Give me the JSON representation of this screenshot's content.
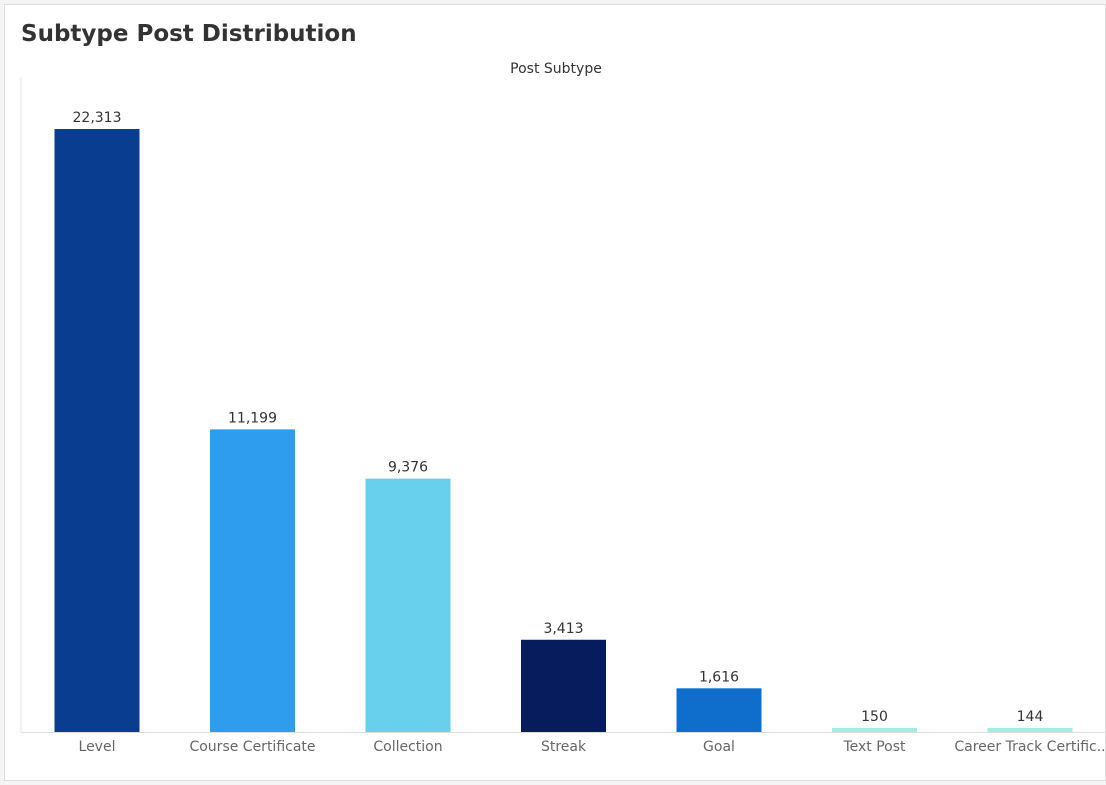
{
  "dashboard": {
    "title": "Subtype Post Distribution"
  },
  "chart_data": {
    "type": "bar",
    "title": "Subtype Post Distribution",
    "column_header": "Post Subtype",
    "categories": [
      "Level",
      "Course Certificate",
      "Collection",
      "Streak",
      "Goal",
      "Text Post",
      "Career Track Certificate"
    ],
    "category_tick_labels": [
      "Level",
      "Course Certificate",
      "Collection",
      "Streak",
      "Goal",
      "Text Post",
      "Career Track Certific.."
    ],
    "values": [
      22313,
      11199,
      9376,
      3413,
      1616,
      150,
      144
    ],
    "data_labels": [
      "22,313",
      "11,199",
      "9,376",
      "3,413",
      "1,616",
      "150",
      "144"
    ],
    "colors": [
      "#083d8f",
      "#2f9ded",
      "#68cfec",
      "#061c5d",
      "#0f6dcb",
      "#a2ece6",
      "#a2ece6"
    ],
    "ylim": [
      0,
      24000
    ],
    "grid": false,
    "legend": "none"
  }
}
